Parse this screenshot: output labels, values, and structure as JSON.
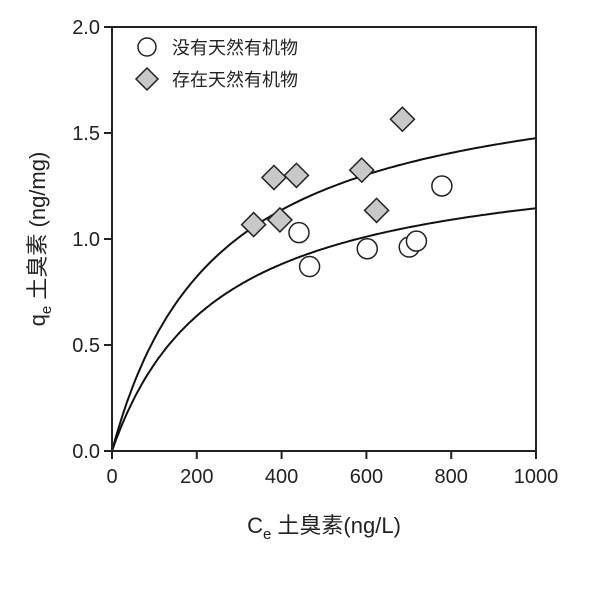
{
  "chart_data": {
    "type": "scatter",
    "xlabel_main": "C",
    "xlabel_sub": "e",
    "xlabel_rest": " 土臭素(ng/L)",
    "ylabel_main": "q",
    "ylabel_sub": "e",
    "ylabel_rest": " 土臭素 (ng/mg)",
    "xlim": [
      0,
      1000
    ],
    "ylim": [
      0,
      2.0
    ],
    "xticks": [
      "0",
      "200",
      "400",
      "600",
      "800",
      "1000"
    ],
    "yticks": [
      "0.0",
      "0.5",
      "1.0",
      "1.5",
      "2.0"
    ],
    "grid": false,
    "legend_placement": "top-left",
    "series": [
      {
        "name": "没有天然有机物",
        "marker": "circle",
        "fill": "#ffffff",
        "points": [
          [
            441,
            1.03
          ],
          [
            466,
            0.87
          ],
          [
            602,
            0.954
          ],
          [
            701,
            0.962
          ],
          [
            718,
            0.99
          ],
          [
            778,
            1.25
          ]
        ],
        "fit": {
          "model": "Langmuir",
          "qmax": 1.43,
          "K": 0.00402
        }
      },
      {
        "name": "存在天然有机物",
        "marker": "diamond",
        "fill": "#c8c8c8",
        "points": [
          [
            334,
            1.068
          ],
          [
            382,
            1.29
          ],
          [
            396,
            1.09
          ],
          [
            435,
            1.3
          ],
          [
            589,
            1.325
          ],
          [
            624,
            1.135
          ],
          [
            685,
            1.565
          ]
        ],
        "fit": {
          "model": "Langmuir",
          "qmax": 1.841,
          "K": 0.00404
        }
      }
    ]
  }
}
